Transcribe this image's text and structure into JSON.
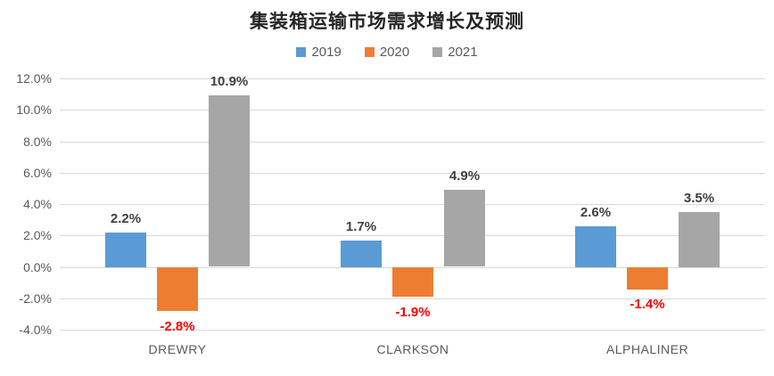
{
  "title": "集装箱运输市场需求增长及预测",
  "colors": {
    "series_2019": "#5B9BD5",
    "series_2020": "#ED7D31",
    "series_2021": "#A6A6A6",
    "positive_label": "#404040",
    "negative_label": "#FF0000",
    "gridline": "#D9D9D9",
    "axis_text": "#595959",
    "title_text": "#262626"
  },
  "chart_data": {
    "type": "bar",
    "title": "集装箱运输市场需求增长及预测",
    "categories": [
      "DREWRY",
      "CLARKSON",
      "ALPHALINER"
    ],
    "series": [
      {
        "name": "2019",
        "color": "#5B9BD5",
        "values": [
          2.2,
          1.7,
          2.6
        ],
        "labels": [
          "2.2%",
          "1.7%",
          "2.6%"
        ]
      },
      {
        "name": "2020",
        "color": "#ED7D31",
        "values": [
          -2.8,
          -1.9,
          -1.4
        ],
        "labels": [
          "-2.8%",
          "-1.9%",
          "-1.4%"
        ]
      },
      {
        "name": "2021",
        "color": "#A6A6A6",
        "values": [
          10.9,
          4.9,
          3.5
        ],
        "labels": [
          "10.9%",
          "4.9%",
          "3.5%"
        ]
      }
    ],
    "xlabel": "",
    "ylabel": "",
    "ylim": [
      -4,
      12
    ],
    "ytick_step": 2,
    "yticks": [
      "12.0%",
      "10.0%",
      "8.0%",
      "6.0%",
      "4.0%",
      "2.0%",
      "0.0%",
      "-2.0%",
      "-4.0%"
    ],
    "ytick_values": [
      12,
      10,
      8,
      6,
      4,
      2,
      0,
      -2,
      -4
    ],
    "grid": true,
    "legend_position": "top",
    "value_label_rule": "negative values shown in red below bar, positive in dark gray above bar"
  }
}
